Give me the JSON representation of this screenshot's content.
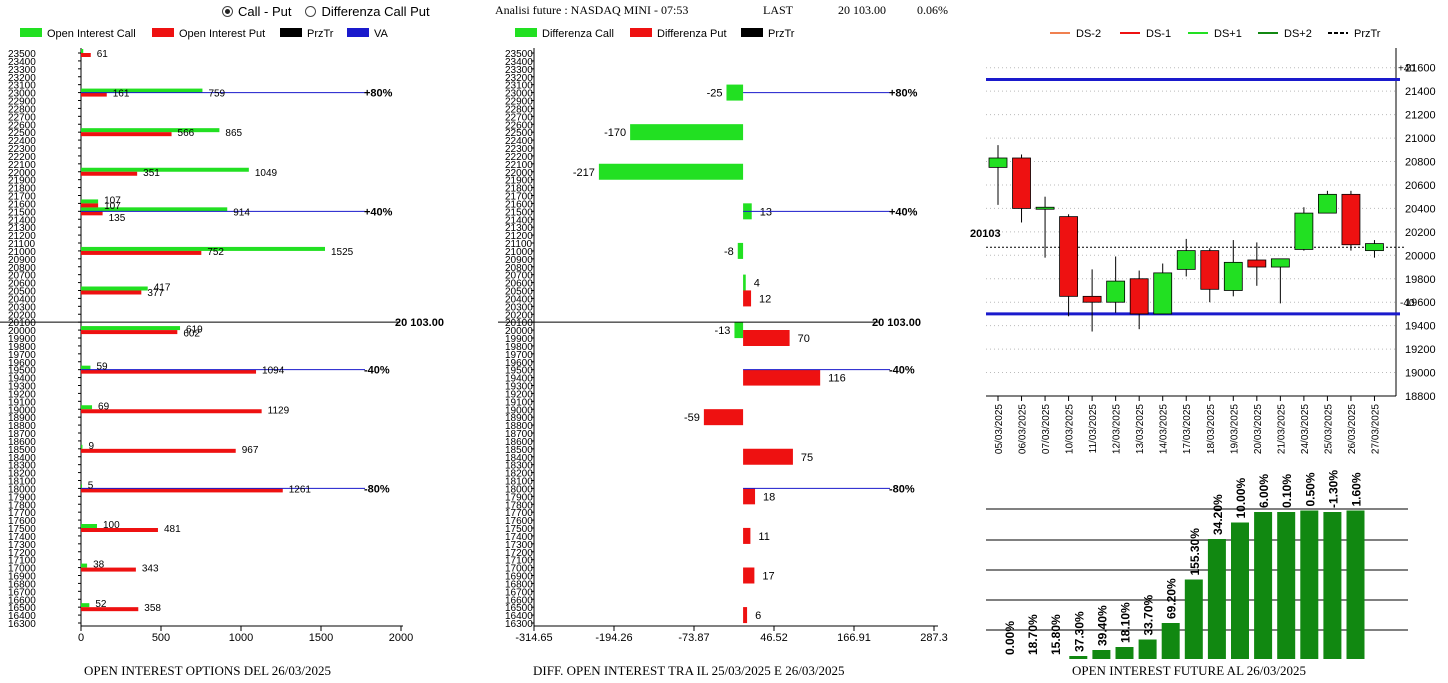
{
  "header": {
    "radio_options": [
      {
        "label": "Call - Put",
        "selected": true
      },
      {
        "label": "Differenza Call Put",
        "selected": false
      }
    ],
    "title": "Analisi future : NASDAQ MINI - 07:53",
    "last_label": "LAST",
    "last_value": "20 103.00",
    "change": "0.06%"
  },
  "colors": {
    "call": "#22e022",
    "put": "#ee1111",
    "przTr": "#000000",
    "va": "#1a1acc",
    "future_bar": "#118811"
  },
  "chart_data": [
    {
      "type": "bar",
      "orientation": "horizontal",
      "footer": "OPEN INTEREST OPTIONS DEL 26/03/2025",
      "legend": [
        "Open Interest Call",
        "Open Interest Put",
        "PrzTr",
        "VA"
      ],
      "strikes": [
        23500,
        23400,
        23300,
        23200,
        23100,
        23000,
        22900,
        22800,
        22700,
        22600,
        22500,
        22400,
        22300,
        22200,
        22100,
        22000,
        21900,
        21800,
        21700,
        21600,
        21500,
        21400,
        21300,
        21200,
        21100,
        21000,
        20900,
        20800,
        20700,
        20600,
        20500,
        20400,
        20300,
        20200,
        20100,
        20000,
        19900,
        19800,
        19700,
        19600,
        19500,
        19400,
        19300,
        19200,
        19100,
        19000,
        18900,
        18800,
        18700,
        18600,
        18500,
        18400,
        18300,
        18200,
        18100,
        18000,
        17900,
        17800,
        17700,
        17600,
        17500,
        17400,
        17300,
        17200,
        17100,
        17000,
        16900,
        16800,
        16700,
        16600,
        16500,
        16400,
        16300
      ],
      "xlim": [
        0,
        2000
      ],
      "xticks": [
        "0",
        "500",
        "1000",
        "1500",
        "2000"
      ],
      "series": [
        {
          "name": "Open Interest Call",
          "points": [
            {
              "strike": 23500,
              "value": 14
            },
            {
              "strike": 23000,
              "value": 759
            },
            {
              "strike": 22500,
              "value": 865
            },
            {
              "strike": 22000,
              "value": 1049
            },
            {
              "strike": 21600,
              "value": 107
            },
            {
              "strike": 21500,
              "value": 914
            },
            {
              "strike": 21000,
              "value": 1525
            },
            {
              "strike": 20500,
              "value": 417
            },
            {
              "strike": 20000,
              "value": 619
            },
            {
              "strike": 19500,
              "value": 59
            },
            {
              "strike": 19000,
              "value": 69
            },
            {
              "strike": 18500,
              "value": 9
            },
            {
              "strike": 18000,
              "value": 5
            },
            {
              "strike": 17500,
              "value": 100
            },
            {
              "strike": 17000,
              "value": 38
            },
            {
              "strike": 16500,
              "value": 52
            }
          ]
        },
        {
          "name": "Open Interest Put",
          "points": [
            {
              "strike": 23500,
              "value": 61
            },
            {
              "strike": 23000,
              "value": 161
            },
            {
              "strike": 22500,
              "value": 566
            },
            {
              "strike": 22000,
              "value": 351
            },
            {
              "strike": 21600,
              "value": 107
            },
            {
              "strike": 21500,
              "value": 135
            },
            {
              "strike": 21000,
              "value": 752
            },
            {
              "strike": 20500,
              "value": 377
            },
            {
              "strike": 20000,
              "value": 602
            },
            {
              "strike": 19500,
              "value": 1094
            },
            {
              "strike": 19000,
              "value": 1129
            },
            {
              "strike": 18500,
              "value": 967
            },
            {
              "strike": 18000,
              "value": 1261
            },
            {
              "strike": 17500,
              "value": 481
            },
            {
              "strike": 17000,
              "value": 343
            },
            {
              "strike": 16500,
              "value": 358
            }
          ]
        }
      ],
      "labels": [
        {
          "strike": 23500,
          "value": 61,
          "text": "61"
        },
        {
          "strike": 23000,
          "value": 759,
          "text": "759"
        },
        {
          "strike": 23000,
          "value": 161,
          "text": "161"
        },
        {
          "strike": 22500,
          "value": 865,
          "text": "865"
        },
        {
          "strike": 22500,
          "value": 566,
          "text": "566"
        },
        {
          "strike": 22000,
          "value": 1049,
          "text": "1049"
        },
        {
          "strike": 22000,
          "value": 351,
          "text": "351"
        },
        {
          "strike": 21650,
          "value": 107,
          "text": "107"
        },
        {
          "strike": 21580,
          "value": 107,
          "text": "107"
        },
        {
          "strike": 21500,
          "value": 914,
          "text": "914"
        },
        {
          "strike": 21430,
          "value": 135,
          "text": "135"
        },
        {
          "strike": 21000,
          "value": 1525,
          "text": "1525"
        },
        {
          "strike": 21000,
          "value": 752,
          "text": "752"
        },
        {
          "strike": 20550,
          "value": 417,
          "text": "417"
        },
        {
          "strike": 20480,
          "value": 377,
          "text": "377"
        },
        {
          "strike": 20020,
          "value": 619,
          "text": "619"
        },
        {
          "strike": 19970,
          "value": 602,
          "text": "602"
        },
        {
          "strike": 19550,
          "value": 59,
          "text": "59"
        },
        {
          "strike": 19500,
          "value": 1094,
          "text": "1094"
        },
        {
          "strike": 19050,
          "value": 69,
          "text": "69"
        },
        {
          "strike": 19000,
          "value": 1129,
          "text": "1129"
        },
        {
          "strike": 18550,
          "value": 9,
          "text": "9"
        },
        {
          "strike": 18500,
          "value": 967,
          "text": "967"
        },
        {
          "strike": 18050,
          "value": 5,
          "text": "5"
        },
        {
          "strike": 18000,
          "value": 1261,
          "text": "1261"
        },
        {
          "strike": 17550,
          "value": 100,
          "text": "100"
        },
        {
          "strike": 17500,
          "value": 481,
          "text": "481"
        },
        {
          "strike": 17050,
          "value": 38,
          "text": "38"
        },
        {
          "strike": 17000,
          "value": 343,
          "text": "343"
        },
        {
          "strike": 16550,
          "value": 52,
          "text": "52"
        },
        {
          "strike": 16500,
          "value": 358,
          "text": "358"
        }
      ],
      "reference_lines": [
        {
          "strike": 23000,
          "label": "+80%",
          "kind": "va"
        },
        {
          "strike": 21500,
          "label": "+40%",
          "kind": "va"
        },
        {
          "strike": 20100,
          "label": "20 103.00",
          "kind": "przTr"
        },
        {
          "strike": 19500,
          "label": "-40%",
          "kind": "va"
        },
        {
          "strike": 18000,
          "label": "-80%",
          "kind": "va"
        }
      ]
    },
    {
      "type": "bar",
      "orientation": "horizontal",
      "footer": "DIFF. OPEN INTEREST TRA IL 25/03/2025 E 26/03/2025",
      "legend": [
        "Differenza Call",
        "Differenza Put",
        "PrzTr"
      ],
      "xlim": [
        -314.65,
        287.3
      ],
      "xticks": [
        "-314.65",
        "-194.26",
        "-73.87",
        "46.52",
        "166.91",
        "287.3"
      ],
      "zero_value": 0,
      "bars": [
        {
          "strike": 23000,
          "value": -25,
          "series": "Differenza Call"
        },
        {
          "strike": 22500,
          "value": -170,
          "series": "Differenza Call"
        },
        {
          "strike": 22000,
          "value": -217,
          "series": "Differenza Call"
        },
        {
          "strike": 21500,
          "value": 13,
          "series": "Differenza Call"
        },
        {
          "strike": 21000,
          "value": -8,
          "series": "Differenza Call"
        },
        {
          "strike": 20600,
          "value": 4,
          "series": "Differenza Call"
        },
        {
          "strike": 20400,
          "value": 12,
          "series": "Differenza Put"
        },
        {
          "strike": 20000,
          "value": -13,
          "series": "Differenza Call"
        },
        {
          "strike": 19900,
          "value": 70,
          "series": "Differenza Put"
        },
        {
          "strike": 19400,
          "value": 116,
          "series": "Differenza Put"
        },
        {
          "strike": 18900,
          "value": -59,
          "series": "Differenza Put"
        },
        {
          "strike": 18400,
          "value": 75,
          "series": "Differenza Put"
        },
        {
          "strike": 17900,
          "value": 18,
          "series": "Differenza Put"
        },
        {
          "strike": 17400,
          "value": 11,
          "series": "Differenza Put"
        },
        {
          "strike": 16900,
          "value": 17,
          "series": "Differenza Put"
        },
        {
          "strike": 16400,
          "value": 6,
          "series": "Differenza Put"
        }
      ],
      "bar_labels": [
        "-25",
        "-170",
        "-217",
        "13",
        "-8",
        "4",
        "12",
        "-13",
        "70",
        "116",
        "-59",
        "75",
        "18",
        "11",
        "17",
        "6"
      ],
      "reference_lines": [
        {
          "strike": 23000,
          "label": "+80%",
          "kind": "va"
        },
        {
          "strike": 21500,
          "label": "+40%",
          "kind": "va"
        },
        {
          "strike": 20100,
          "label": "20 103.00",
          "kind": "przTr"
        },
        {
          "strike": 19500,
          "label": "-40%",
          "kind": "va"
        },
        {
          "strike": 18000,
          "label": "-80%",
          "kind": "va"
        }
      ]
    },
    {
      "type": "candlestick",
      "legend": [
        "DS-2",
        "DS-1",
        "DS+1",
        "DS+2",
        "PrzTr"
      ],
      "legend_colors": [
        "#f08050",
        "#ee1111",
        "#22e022",
        "#118811",
        "#000000"
      ],
      "ylim": [
        18800,
        21700
      ],
      "yticks": [
        "21600",
        "21400",
        "21200",
        "21000",
        "20800",
        "20600",
        "20400",
        "20200",
        "20000",
        "19800",
        "19600",
        "19400",
        "19200",
        "19000",
        "18800"
      ],
      "price_label": "20103",
      "price": 20103,
      "upper_line": {
        "value": 21500,
        "label": "+40"
      },
      "lower_line": {
        "value": 19500,
        "label": "-40"
      },
      "candles": [
        {
          "date": "05/03/2025",
          "open": 20750,
          "high": 20940,
          "low": 20430,
          "close": 20830
        },
        {
          "date": "06/03/2025",
          "open": 20830,
          "high": 20860,
          "low": 20280,
          "close": 20400
        },
        {
          "date": "07/03/2025",
          "open": 20400,
          "high": 20500,
          "low": 19980,
          "close": 20410
        },
        {
          "date": "10/03/2025",
          "open": 20330,
          "high": 20350,
          "low": 19480,
          "close": 19650
        },
        {
          "date": "11/03/2025",
          "open": 19650,
          "high": 19880,
          "low": 19350,
          "close": 19600
        },
        {
          "date": "12/03/2025",
          "open": 19600,
          "high": 19990,
          "low": 19510,
          "close": 19780
        },
        {
          "date": "13/03/2025",
          "open": 19800,
          "high": 19870,
          "low": 19370,
          "close": 19500
        },
        {
          "date": "14/03/2025",
          "open": 19500,
          "high": 19930,
          "low": 19500,
          "close": 19850
        },
        {
          "date": "17/03/2025",
          "open": 19880,
          "high": 20140,
          "low": 19820,
          "close": 20040
        },
        {
          "date": "18/03/2025",
          "open": 20040,
          "high": 20060,
          "low": 19600,
          "close": 19710
        },
        {
          "date": "19/03/2025",
          "open": 19700,
          "high": 20130,
          "low": 19650,
          "close": 19940
        },
        {
          "date": "20/03/2025",
          "open": 19960,
          "high": 20110,
          "low": 19740,
          "close": 19900
        },
        {
          "date": "21/03/2025",
          "open": 19900,
          "high": 19970,
          "low": 19590,
          "close": 19970
        },
        {
          "date": "24/03/2025",
          "open": 20050,
          "high": 20410,
          "low": 20040,
          "close": 20360
        },
        {
          "date": "25/03/2025",
          "open": 20360,
          "high": 20550,
          "low": 20360,
          "close": 20520
        },
        {
          "date": "26/03/2025",
          "open": 20520,
          "high": 20550,
          "low": 20040,
          "close": 20090
        },
        {
          "date": "27/03/2025",
          "open": 20040,
          "high": 20130,
          "low": 19980,
          "close": 20100
        }
      ]
    },
    {
      "type": "bar",
      "footer": "OPEN INTEREST FUTURE AL 26/03/2025",
      "categories": [
        "05/03/2025",
        "06/03/2025",
        "07/03/2025",
        "10/03/2025",
        "11/03/2025",
        "12/03/2025",
        "13/03/2025",
        "14/03/2025",
        "17/03/2025",
        "18/03/2025",
        "19/03/2025",
        "20/03/2025",
        "21/03/2025",
        "24/03/2025",
        "25/03/2025",
        "26/03/2025"
      ],
      "relative_height": [
        0.0,
        0.0,
        0.0,
        0.02,
        0.06,
        0.08,
        0.13,
        0.24,
        0.53,
        0.8,
        0.91,
        0.98,
        0.98,
        0.99,
        0.98,
        0.99
      ],
      "labels": [
        "0.00%",
        "18.70%",
        "15.80%",
        "37.30%",
        "39.40%",
        "18.10%",
        "33.70%",
        "69.20%",
        "155.30%",
        "34.20%",
        "10.00%",
        "6.00%",
        "0.10%",
        "0.50%",
        "-1.30%",
        "1.60%"
      ]
    }
  ]
}
